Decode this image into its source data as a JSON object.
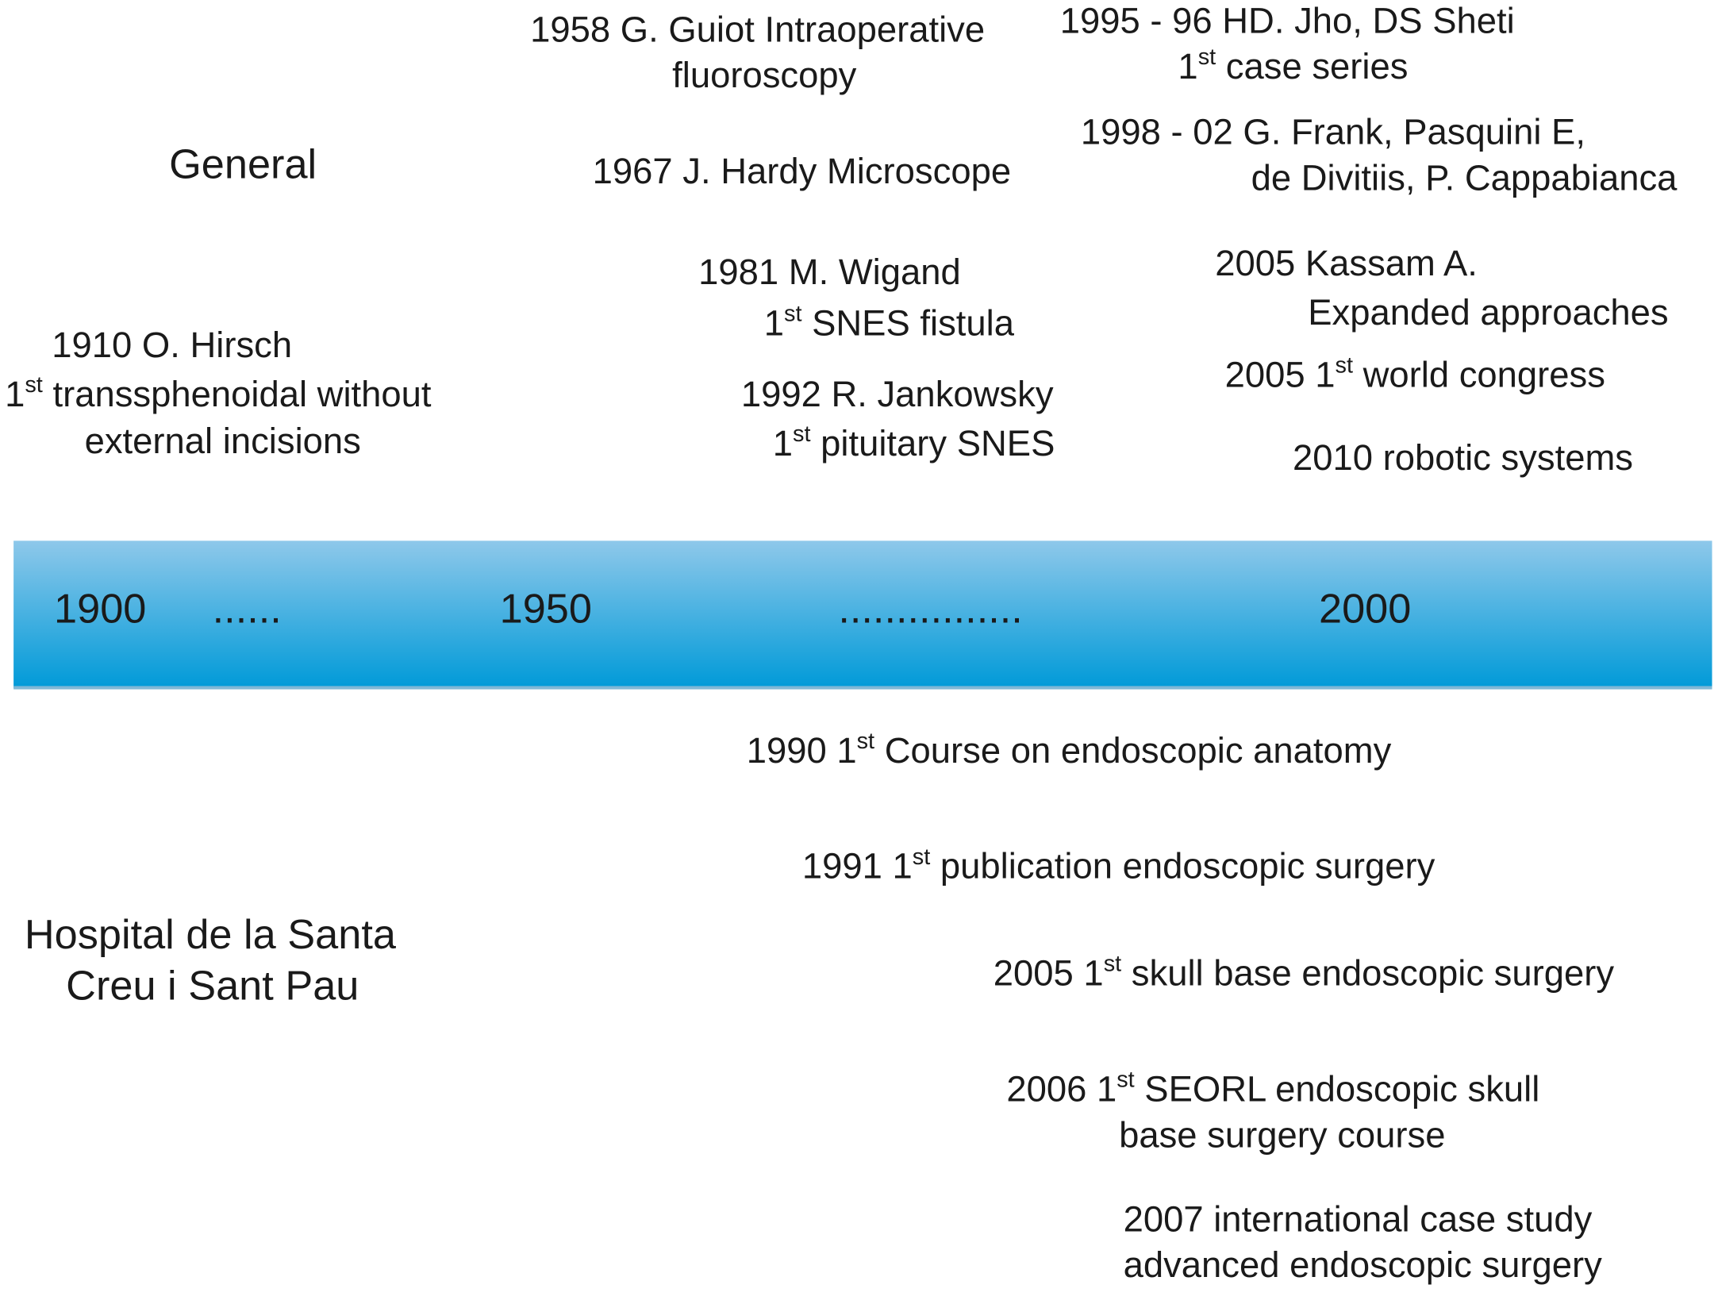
{
  "general_label": "General",
  "hospital_label": [
    "Hospital de la Santa",
    "Creu i Sant Pau"
  ],
  "timeline": {
    "years": [
      "1900",
      "1950",
      "2000"
    ],
    "dots": [
      "......",
      "................"
    ]
  },
  "general_events": [
    {
      "lines": [
        "1910 O. Hirsch",
        {
          "pre": "1",
          "sup": "st",
          "post": " transsphenoidal without"
        },
        "external incisions"
      ]
    },
    {
      "lines": [
        "1958 G. Guiot Intraoperative",
        "fluoroscopy"
      ]
    },
    {
      "lines": [
        "1967 J. Hardy Microscope"
      ]
    },
    {
      "lines": [
        "1981 M. Wigand",
        {
          "pre": "1",
          "sup": "st",
          "post": " SNES fistula"
        }
      ]
    },
    {
      "lines": [
        "1992 R. Jankowsky",
        {
          "pre": "1",
          "sup": "st",
          "post": " pituitary SNES"
        }
      ]
    },
    {
      "lines": [
        "1995 - 96 HD. Jho, DS Sheti",
        {
          "pre": "1",
          "sup": "st",
          "post": " case series"
        }
      ]
    },
    {
      "lines": [
        "1998 - 02 G. Frank, Pasquini E,",
        "de Divitiis, P. Cappabianca"
      ]
    },
    {
      "lines": [
        "2005 Kassam A.",
        "Expanded approaches"
      ]
    },
    {
      "lines": [
        {
          "pre": "2005 1",
          "sup": "st",
          "post": " world congress"
        }
      ]
    },
    {
      "lines": [
        "2010 robotic systems"
      ]
    }
  ],
  "hospital_events": [
    {
      "lines": [
        {
          "pre": "1990 1",
          "sup": "st",
          "post": " Course on endoscopic anatomy"
        }
      ]
    },
    {
      "lines": [
        {
          "pre": "1991 1",
          "sup": "st",
          "post": " publication endoscopic surgery"
        }
      ]
    },
    {
      "lines": [
        {
          "pre": "2005 1",
          "sup": "st",
          "post": " skull base endoscopic surgery"
        }
      ]
    },
    {
      "lines": [
        {
          "pre": "2006 1",
          "sup": "st",
          "post": " SEORL endoscopic skull"
        },
        "base surgery course"
      ]
    },
    {
      "lines": [
        "2007 international case study",
        "advanced endoscopic surgery"
      ]
    }
  ]
}
